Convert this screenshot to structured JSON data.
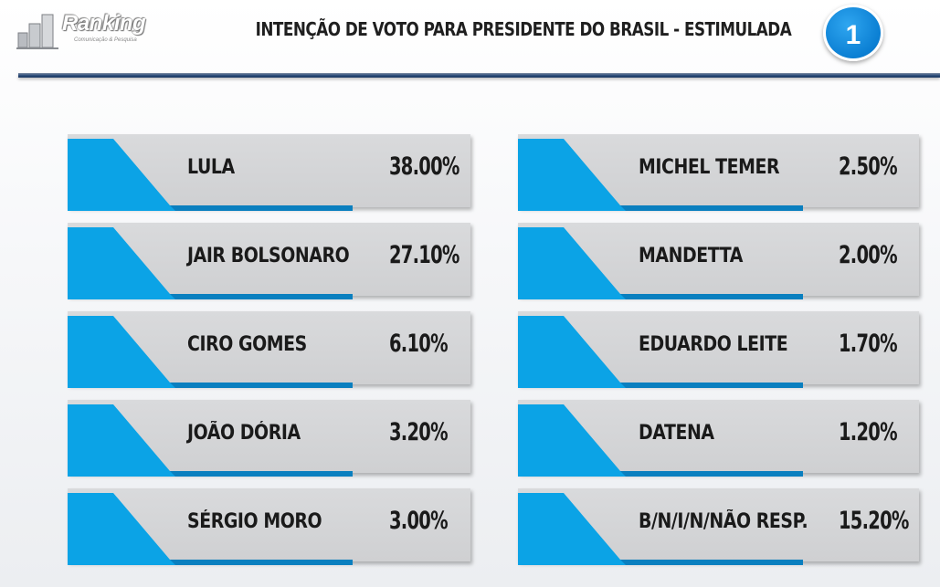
{
  "header": {
    "logo_text": "Ranking",
    "logo_subtext": "Comunicação & Pesquisa",
    "title": "INTENÇÃO DE VOTO PARA PRESIDENTE DO BRASIL - ESTIMULADA",
    "page_number": "1"
  },
  "colors": {
    "accent": "#0ba3e6",
    "card": "#d3d4d6",
    "rule": "#2f4f7c",
    "badge": "#0b7fd3"
  },
  "chart_data": {
    "type": "table",
    "title": "INTENÇÃO DE VOTO PARA PRESIDENTE DO BRASIL - ESTIMULADA",
    "rows": [
      {
        "name": "LULA",
        "value_label": "38.00%",
        "value": 38.0
      },
      {
        "name": "JAIR BOLSONARO",
        "value_label": "27.10%",
        "value": 27.1
      },
      {
        "name": "CIRO GOMES",
        "value_label": "6.10%",
        "value": 6.1
      },
      {
        "name": "JOÃO DÓRIA",
        "value_label": "3.20%",
        "value": 3.2
      },
      {
        "name": "SÉRGIO MORO",
        "value_label": "3.00%",
        "value": 3.0
      },
      {
        "name": "MICHEL TEMER",
        "value_label": "2.50%",
        "value": 2.5
      },
      {
        "name": "MANDETTA",
        "value_label": "2.00%",
        "value": 2.0
      },
      {
        "name": "EDUARDO LEITE",
        "value_label": "1.70%",
        "value": 1.7
      },
      {
        "name": "DATENA",
        "value_label": "1.20%",
        "value": 1.2
      },
      {
        "name": "B/N/I/N/NÃO RESP.",
        "value_label": "15.20%",
        "value": 15.2
      }
    ]
  }
}
